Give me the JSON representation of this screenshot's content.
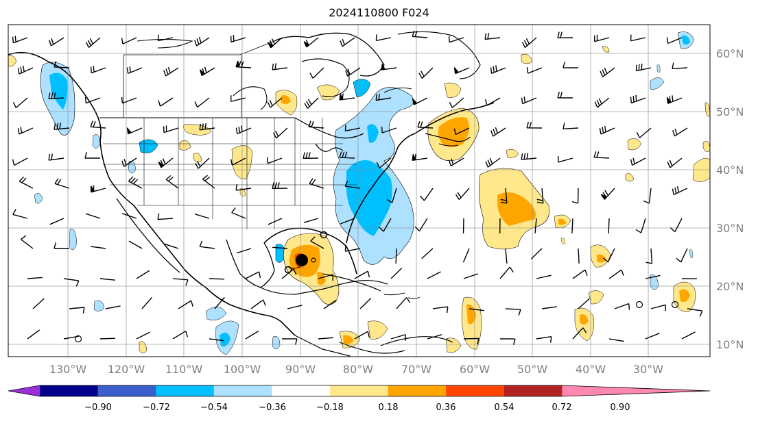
{
  "title": "2024110800 F024",
  "latitude_labels": [
    "60°N",
    "50°N",
    "40°N",
    "30°N",
    "20°N",
    "10°N"
  ],
  "longitude_labels": [
    "130°W",
    "120°W",
    "110°W",
    "100°W",
    "90°W",
    "80°W",
    "70°W",
    "60°W",
    "50°W",
    "40°W",
    "30°W"
  ],
  "colorbar": {
    "tick_labels": [
      "−0.90",
      "−0.72",
      "−0.54",
      "−0.36",
      "−0.18",
      "0.18",
      "0.36",
      "0.54",
      "0.72",
      "0.90"
    ],
    "colors": [
      "#9b30d9",
      "#00008b",
      "#3a5fcd",
      "#00bfff",
      "#aee0ff",
      "#ffffff",
      "#ffe88c",
      "#ffa500",
      "#ff4500",
      "#b22222",
      "#ff88b0"
    ]
  }
}
